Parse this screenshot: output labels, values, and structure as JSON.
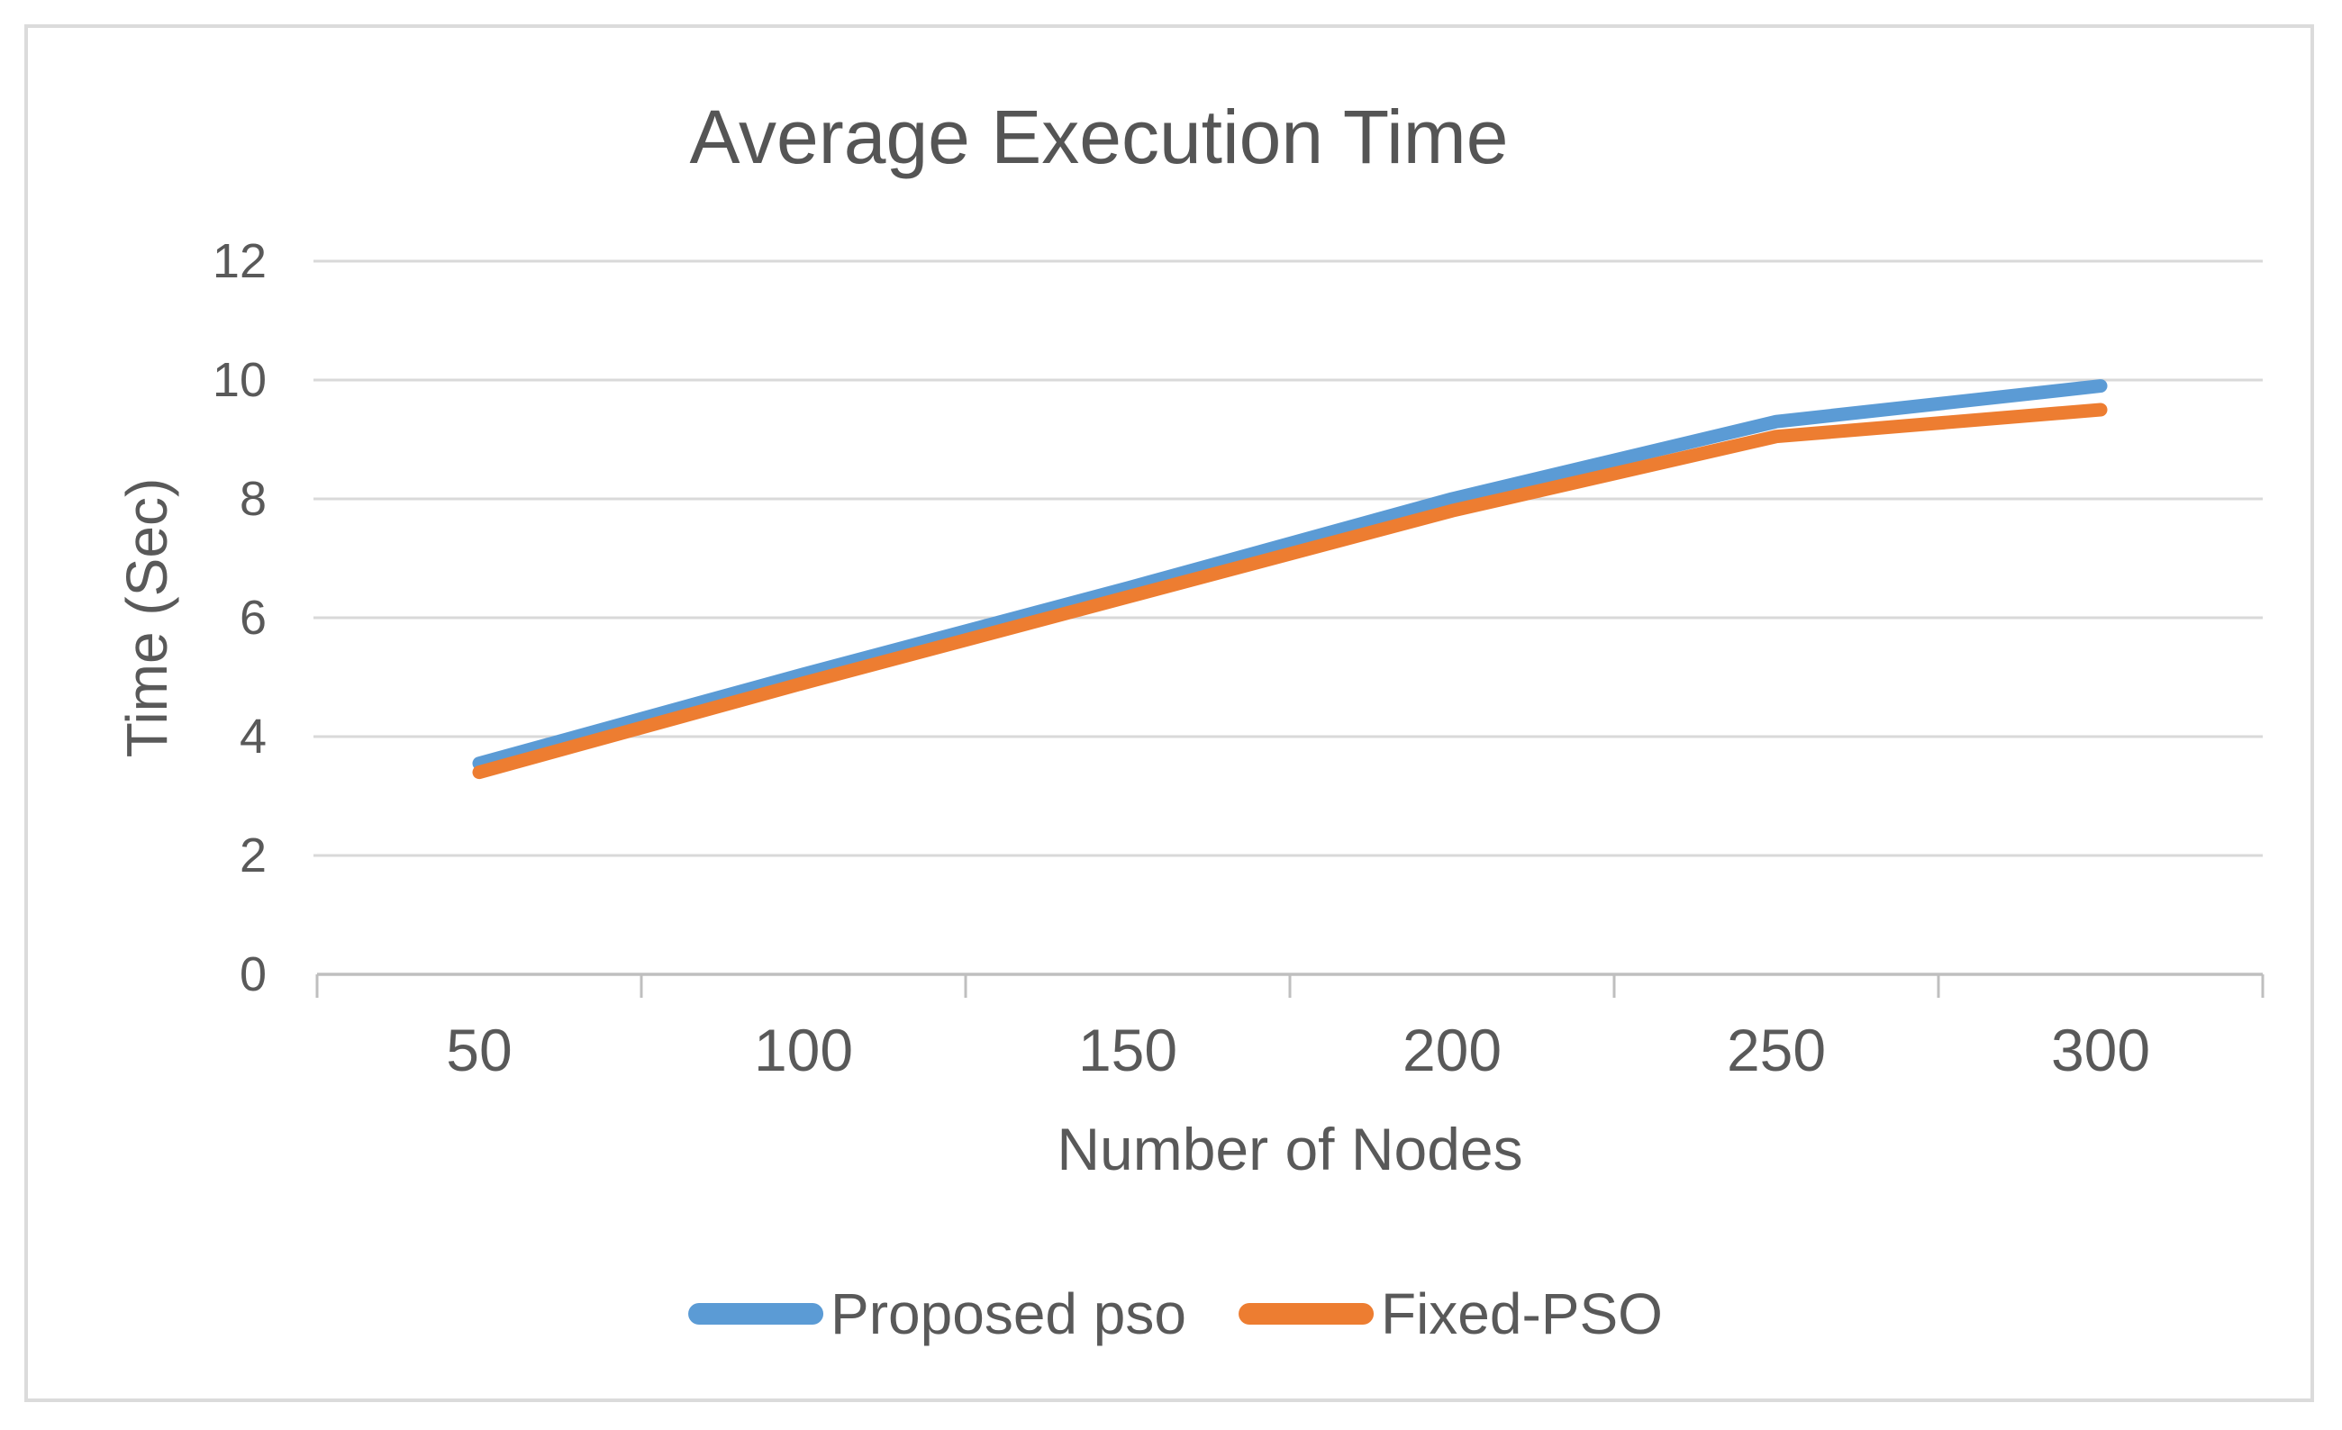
{
  "chart": {
    "title": "Average Execution Time",
    "x_axis_title": "Number of Nodes",
    "y_axis_title": "Time (Sec)"
  },
  "chart_data": {
    "type": "line",
    "title": "Average Execution Time",
    "xlabel": "Number of Nodes",
    "ylabel": "Time (Sec)",
    "categories": [
      50,
      100,
      150,
      200,
      250,
      300
    ],
    "series": [
      {
        "name": "Proposed pso",
        "color": "#5B9BD5",
        "values": [
          3.55,
          5.05,
          6.5,
          8.0,
          9.3,
          9.9
        ]
      },
      {
        "name": "Fixed-PSO",
        "color": "#ED7D31",
        "values": [
          3.4,
          4.9,
          6.35,
          7.8,
          9.05,
          9.5
        ]
      }
    ],
    "ylim": [
      0,
      12
    ],
    "yticks": [
      0,
      2,
      4,
      6,
      8,
      10,
      12
    ],
    "grid": true,
    "legend_position": "bottom"
  },
  "colors": {
    "series_blue": "#5B9BD5",
    "series_orange": "#ED7D31",
    "title_text": "#555555",
    "axis_text": "#595959",
    "gridline": "#D9D9D9",
    "axis_line": "#BFBFBF",
    "border": "#DBDBDB",
    "background": "#FFFFFF"
  }
}
